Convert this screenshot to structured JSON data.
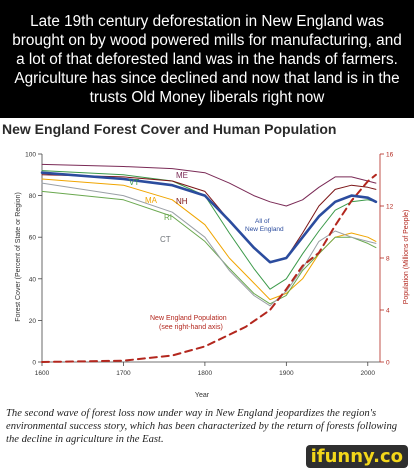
{
  "meme_caption": "Late 19th century deforestation in New England was brought on by wood powered mills for manufacturing, and a lot of that deforested land was in the hands of farmers. Agriculture has since declined and now that land is in the trusts Old Money liberals right now",
  "figure_caption": "The second wave of forest loss now under way in New England jeopardizes the region's environmental success story, which has been characterized by the return of forests following the decline in agriculture in the East.",
  "watermark": "ifunny.co",
  "chart_data": {
    "type": "line",
    "title": "New England Forest Cover and Human Population",
    "xlabel": "Year",
    "ylabel": "Forest Cover (Percent of State or Region)",
    "ylabel_right": "Population (Millions of People)",
    "xlim": [
      1600,
      2015
    ],
    "ylim": [
      0,
      100
    ],
    "ylim_right": [
      0,
      16
    ],
    "x_ticks": [
      "1600",
      "1700",
      "1800",
      "1900",
      "2000"
    ],
    "y_ticks": [
      "0",
      "20",
      "40",
      "60",
      "80",
      "100"
    ],
    "y_ticks_right": [
      "0",
      "4",
      "8",
      "12",
      "16"
    ],
    "grid": false,
    "series": [
      {
        "name": "ME",
        "color": "#7a2a56",
        "width": 1,
        "x": [
          1600,
          1700,
          1760,
          1800,
          1830,
          1860,
          1880,
          1900,
          1920,
          1940,
          1960,
          1980,
          2000,
          2010
        ],
        "y": [
          95,
          94,
          93,
          91,
          86,
          80,
          77,
          75,
          78,
          84,
          89,
          89,
          87,
          86
        ]
      },
      {
        "name": "VT",
        "color": "#3c9a4a",
        "width": 1,
        "x": [
          1600,
          1700,
          1760,
          1800,
          1830,
          1860,
          1880,
          1900,
          1920,
          1940,
          1960,
          1980,
          2000,
          2010
        ],
        "y": [
          92,
          90,
          87,
          80,
          62,
          45,
          35,
          40,
          52,
          63,
          73,
          77,
          78,
          77
        ]
      },
      {
        "name": "MA",
        "color": "#f0a500",
        "width": 1,
        "x": [
          1600,
          1700,
          1760,
          1800,
          1830,
          1860,
          1880,
          1900,
          1920,
          1940,
          1960,
          1980,
          2000,
          2010
        ],
        "y": [
          88,
          85,
          78,
          66,
          50,
          38,
          30,
          33,
          40,
          52,
          60,
          62,
          60,
          58
        ]
      },
      {
        "name": "NH",
        "color": "#7b1416",
        "width": 1,
        "x": [
          1600,
          1700,
          1760,
          1800,
          1830,
          1860,
          1880,
          1900,
          1920,
          1940,
          1960,
          1980,
          2000,
          2010
        ],
        "y": [
          90,
          89,
          87,
          82,
          68,
          55,
          48,
          50,
          62,
          75,
          83,
          85,
          84,
          83
        ]
      },
      {
        "name": "RI",
        "color": "#6aa84f",
        "width": 1,
        "x": [
          1600,
          1700,
          1760,
          1800,
          1830,
          1860,
          1880,
          1900,
          1920,
          1940,
          1960,
          1980,
          2000,
          2010
        ],
        "y": [
          82,
          78,
          70,
          58,
          45,
          33,
          28,
          32,
          44,
          52,
          60,
          60,
          57,
          55
        ]
      },
      {
        "name": "CT",
        "color": "#9aa0a6",
        "width": 1,
        "x": [
          1600,
          1700,
          1760,
          1800,
          1830,
          1860,
          1880,
          1900,
          1920,
          1940,
          1960,
          1980,
          2000,
          2010
        ],
        "y": [
          86,
          80,
          72,
          60,
          44,
          32,
          27,
          34,
          45,
          58,
          63,
          60,
          58,
          57
        ]
      },
      {
        "name": "All of New England",
        "color": "#2b4c9e",
        "width": 2.6,
        "x": [
          1600,
          1700,
          1760,
          1800,
          1830,
          1860,
          1880,
          1900,
          1920,
          1940,
          1960,
          1980,
          2000,
          2010
        ],
        "y": [
          91,
          88,
          85,
          80,
          68,
          55,
          48,
          50,
          60,
          70,
          77,
          80,
          79,
          77
        ]
      },
      {
        "name": "New England Population (see right-hand axis)",
        "color": "#b3271e",
        "width": 2,
        "dashed": true,
        "axis": "right",
        "x": [
          1600,
          1700,
          1760,
          1800,
          1850,
          1880,
          1900,
          1920,
          1940,
          1960,
          1980,
          2000,
          2010
        ],
        "y": [
          0,
          0.1,
          0.5,
          1.2,
          2.7,
          4.0,
          5.6,
          7.4,
          8.4,
          10.5,
          12.4,
          13.9,
          14.4
        ]
      }
    ],
    "labels": {
      "ME": "ME",
      "VT": "VT",
      "MA": "MA",
      "NH": "NH",
      "RI": "RI",
      "CT": "CT",
      "all_ne_1": "All of",
      "all_ne_2": "New England",
      "pop_1": "New England Population",
      "pop_2": "(see right-hand axis)"
    }
  }
}
